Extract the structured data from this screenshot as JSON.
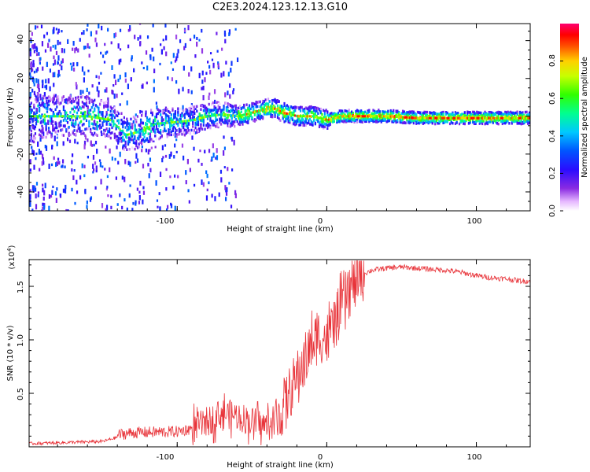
{
  "title": "C2E3.2024.123.12.13.G10",
  "chart_data": [
    {
      "type": "heatmap",
      "xlabel": "Height of straight line (km)",
      "ylabel": "Frequency (Hz)",
      "xlim": [
        -199,
        136
      ],
      "ylim": [
        -50,
        49
      ],
      "xticks": [
        "-100",
        "0",
        "100"
      ],
      "yticks": [
        "40",
        "20",
        "0",
        "-20",
        "-40"
      ],
      "ridge": {
        "x": [
          -190,
          -160,
          -145,
          -135,
          -125,
          -115,
          -100,
          -90,
          -80,
          -70,
          -60,
          -50,
          -40,
          -35,
          -30,
          -20,
          -10,
          0,
          10,
          20,
          40,
          60,
          80,
          100,
          120,
          136
        ],
        "y": [
          0,
          0,
          -2,
          -10,
          -8,
          -4,
          -3,
          -2,
          0,
          1,
          0,
          2,
          4,
          4,
          2,
          0,
          0,
          -2,
          0,
          0,
          0,
          -1,
          -1,
          -1,
          -1,
          -1
        ]
      },
      "colorbar": {
        "label": "Normalized spectral amplitude",
        "range": [
          0,
          1
        ],
        "ticks": [
          "0.0",
          "0.2",
          "0.4",
          "0.6",
          "0.8"
        ]
      }
    },
    {
      "type": "line",
      "xlabel": "Height of straight line (km)",
      "ylabel": "SNR (10 * v/v)",
      "y_multiplier": "(x10",
      "y_multiplier_exp": "4",
      "y_multiplier_close": ")",
      "xlim": [
        -199,
        136
      ],
      "ylim": [
        0,
        17500
      ],
      "xticks": [
        "-100",
        "0",
        "100"
      ],
      "yticks": [
        "0.5",
        "1.0",
        "1.5"
      ],
      "series_color": "#e8343a",
      "envelope": {
        "x": [
          -199,
          -150,
          -140,
          -130,
          -100,
          -90,
          -80,
          -70,
          -60,
          -50,
          -40,
          -35,
          -30,
          -25,
          -20,
          -15,
          -10,
          -5,
          0,
          5,
          10,
          15,
          20,
          25,
          30,
          40,
          50,
          60,
          70,
          80,
          90,
          100,
          110,
          120,
          130,
          136
        ],
        "y": [
          300,
          500,
          900,
          1100,
          1200,
          1500,
          2200,
          3000,
          2800,
          2200,
          1800,
          2000,
          3500,
          5000,
          6500,
          8000,
          9500,
          10500,
          10000,
          11500,
          13000,
          14500,
          15500,
          16200,
          16500,
          16700,
          16800,
          16700,
          16600,
          16500,
          16300,
          16000,
          15800,
          15700,
          15500,
          15500
        ]
      }
    }
  ]
}
